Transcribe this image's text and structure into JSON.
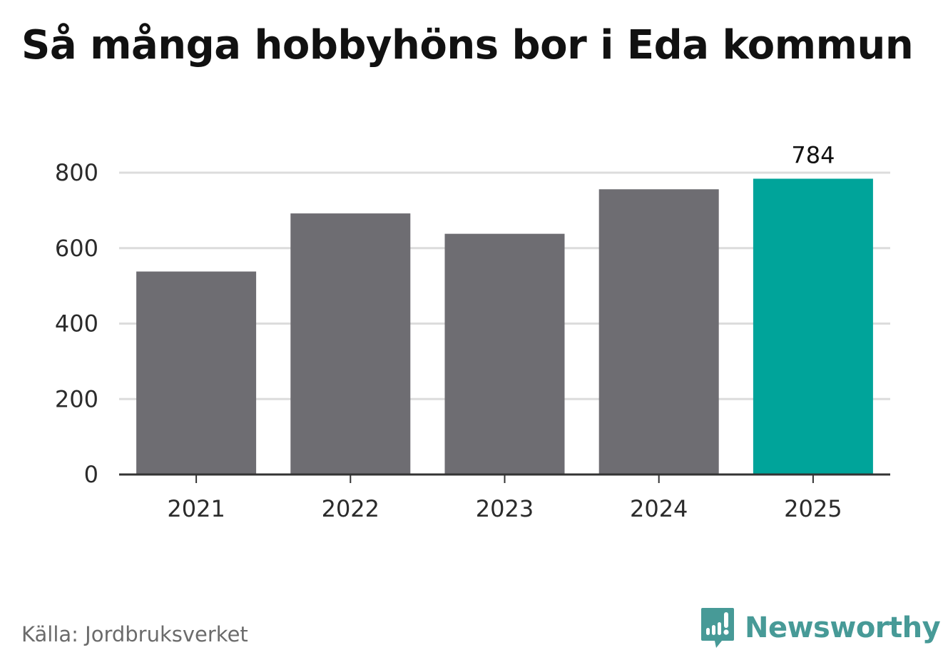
{
  "header": {
    "title": "Så många hobbyhöns bor i Eda kommun"
  },
  "footer": {
    "source": "Källa: Jordbruksverket",
    "brand": "Newsworthy"
  },
  "colors": {
    "bar": "#6e6d72",
    "highlight": "#00a49a",
    "grid": "#dcdcdc",
    "axis": "#333333",
    "brand": "#479a97"
  },
  "chart_data": {
    "type": "bar",
    "title": "Så många hobbyhöns bor i Eda kommun",
    "xlabel": "",
    "ylabel": "",
    "categories": [
      "2021",
      "2022",
      "2023",
      "2024",
      "2025"
    ],
    "values": [
      538,
      692,
      638,
      756,
      784
    ],
    "highlight_index": 4,
    "value_labels": [
      "",
      "",
      "",
      "",
      "784"
    ],
    "ylim": [
      0,
      800
    ],
    "yticks": [
      "0",
      "200",
      "400",
      "600",
      "800"
    ],
    "grid": true,
    "legend": "none"
  }
}
